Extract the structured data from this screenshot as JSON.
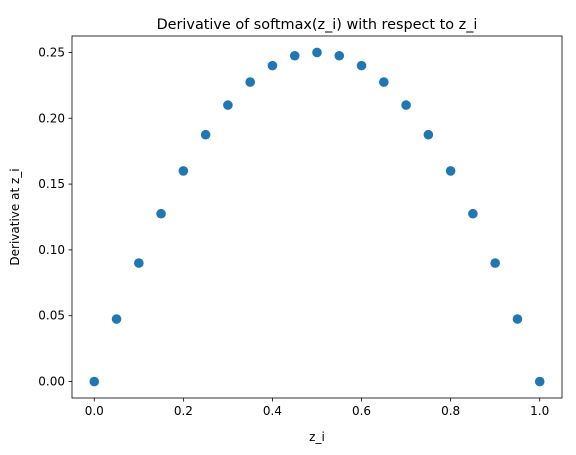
{
  "chart_data": {
    "type": "scatter",
    "title": "Derivative of softmax(z_i) with respect to z_i",
    "xlabel": "z_i",
    "ylabel": "Derivative at z_i",
    "xlim": [
      -0.05,
      1.05
    ],
    "ylim": [
      -0.0125,
      0.2625
    ],
    "x_ticks": [
      "0.0",
      "0.2",
      "0.4",
      "0.6",
      "0.8",
      "1.0"
    ],
    "y_ticks": [
      "0.00",
      "0.05",
      "0.10",
      "0.15",
      "0.20",
      "0.25"
    ],
    "grid": false,
    "color": "#1f77b4",
    "series": [
      {
        "x": [
          0.0,
          0.05,
          0.1,
          0.15,
          0.2,
          0.25,
          0.3,
          0.35,
          0.4,
          0.45,
          0.5,
          0.55,
          0.6,
          0.65,
          0.7,
          0.75,
          0.8,
          0.85,
          0.9,
          0.95,
          1.0
        ],
        "y": [
          0.0,
          0.0475,
          0.09,
          0.1275,
          0.16,
          0.1875,
          0.21,
          0.2275,
          0.24,
          0.2475,
          0.25,
          0.2475,
          0.24,
          0.2275,
          0.21,
          0.1875,
          0.16,
          0.1275,
          0.09,
          0.0475,
          0.0
        ]
      }
    ]
  }
}
